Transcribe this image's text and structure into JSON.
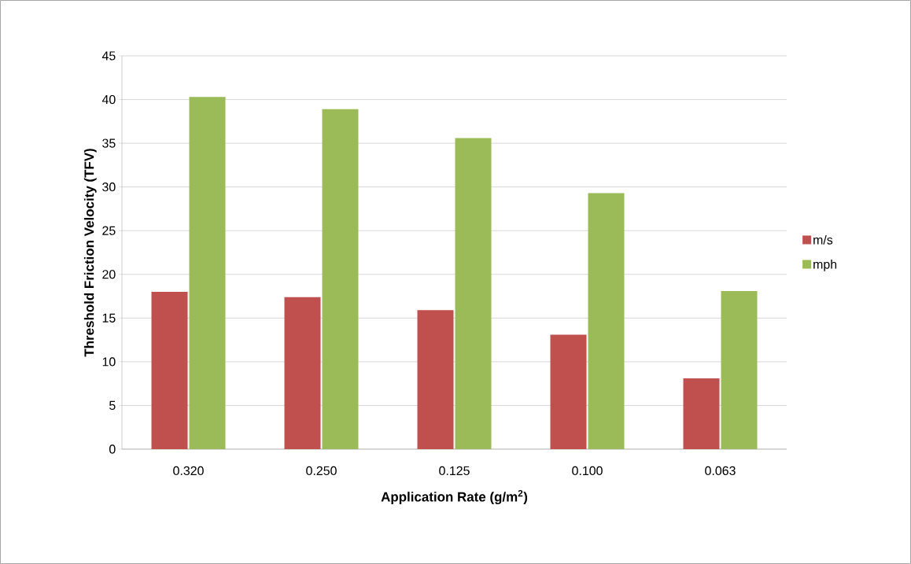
{
  "chart_data": {
    "type": "bar",
    "xlabel": "Application Rate (g/m$^{2}$)",
    "ylabel": "Threshold Friction Velocity (TFV)",
    "categories": [
      "0.320",
      "0.250",
      "0.125",
      "0.100",
      "0.063"
    ],
    "series": [
      {
        "name": "m/s",
        "color": "#c0504d",
        "values": [
          18.0,
          17.4,
          15.9,
          13.1,
          8.1
        ]
      },
      {
        "name": "mph",
        "color": "#9bbb59",
        "values": [
          40.3,
          38.9,
          35.6,
          29.3,
          18.1
        ]
      }
    ],
    "ylim": [
      0,
      45
    ],
    "yticks": [
      0,
      5,
      10,
      15,
      20,
      25,
      30,
      35,
      40,
      45
    ],
    "grid": "y",
    "legend": "right"
  }
}
